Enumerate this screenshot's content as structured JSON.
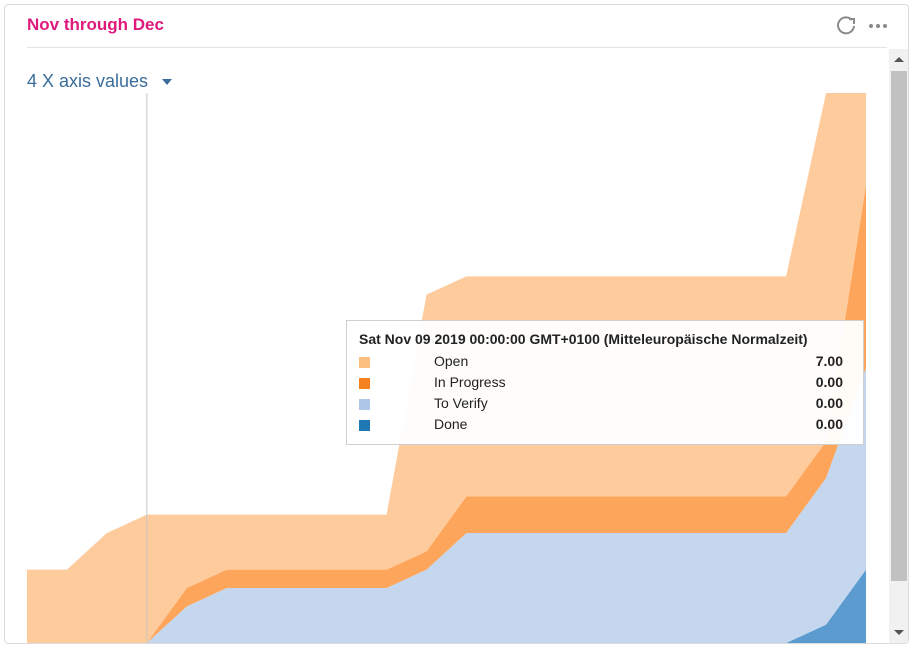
{
  "header": {
    "title": "Nov through Dec",
    "refresh_icon": "refresh-icon",
    "more_icon": "more-horizontal-icon"
  },
  "axis_selector": {
    "label": "4 X axis values",
    "icon": "caret-down-icon"
  },
  "tooltip": {
    "title": "Sat Nov 09 2019 00:00:00 GMT+0100 (Mitteleuropäische Normalzeit)",
    "rows": [
      {
        "series": "Open",
        "value": "7.00",
        "color": "#fdbf7f"
      },
      {
        "series": "In Progress",
        "value": "0.00",
        "color": "#f5821f"
      },
      {
        "series": "To Verify",
        "value": "0.00",
        "color": "#aec7e8"
      },
      {
        "series": "Done",
        "value": "0.00",
        "color": "#1f77b4"
      }
    ]
  },
  "colors": {
    "open": "#fecb9c",
    "in_progress": "#fda55a",
    "to_verify": "#c5d7ee",
    "done": "#5b9bd0",
    "title": "#e0197d",
    "link": "#3a6d9a"
  },
  "chart_data": {
    "type": "area",
    "stacked": true,
    "title": "Nov through Dec",
    "xlabel": "",
    "ylabel": "",
    "ylim": [
      0,
      30
    ],
    "x": [
      0,
      1,
      2,
      3,
      4,
      5,
      6,
      7,
      8,
      9,
      10,
      11,
      12,
      13,
      14,
      15,
      16,
      17,
      18,
      19,
      20,
      21
    ],
    "series": [
      {
        "name": "Done",
        "values": [
          0,
          0,
          0,
          0,
          0,
          0,
          0,
          0,
          0,
          0,
          0,
          0,
          0,
          0,
          0,
          0,
          0,
          0,
          0,
          0,
          1,
          4
        ]
      },
      {
        "name": "To Verify",
        "values": [
          0,
          0,
          0,
          0,
          2,
          3,
          3,
          3,
          3,
          3,
          4,
          6,
          6,
          6,
          6,
          6,
          6,
          6,
          6,
          6,
          8,
          11
        ]
      },
      {
        "name": "In Progress",
        "values": [
          0,
          0,
          0,
          0,
          1,
          1,
          1,
          1,
          1,
          1,
          1,
          2,
          2,
          2,
          2,
          2,
          2,
          2,
          2,
          2,
          2,
          10
        ]
      },
      {
        "name": "Open",
        "values": [
          4,
          4,
          6,
          7,
          4,
          3,
          3,
          3,
          3,
          3,
          14,
          12,
          12,
          12,
          12,
          12,
          12,
          12,
          12,
          12,
          19,
          5
        ]
      }
    ],
    "cursor_x": 3
  }
}
